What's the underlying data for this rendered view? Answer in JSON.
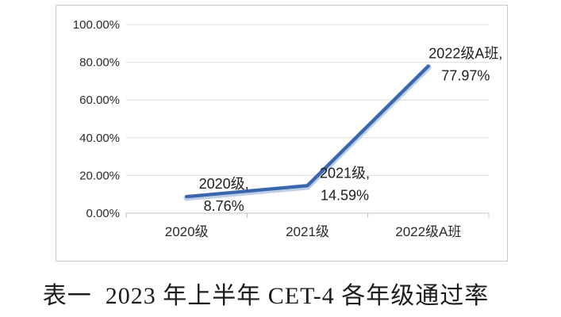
{
  "caption": "表一  2023 年上半年 CET-4 各年级通过率",
  "chart_data": {
    "type": "line",
    "title": "",
    "xlabel": "",
    "ylabel": "",
    "categories": [
      "2020级",
      "2021级",
      "2022级A班"
    ],
    "values": [
      8.76,
      14.59,
      77.97
    ],
    "data_labels": [
      [
        "2020级,",
        "8.76%"
      ],
      [
        "2021级,",
        "14.59%"
      ],
      [
        "2022级A班,",
        "77.97%"
      ]
    ],
    "y_tick_labels": [
      "0.00%",
      "20.00%",
      "40.00%",
      "60.00%",
      "80.00%",
      "100.00%"
    ],
    "ylim": [
      0,
      100
    ],
    "y_step": 20,
    "grid": true,
    "legend_position": "none",
    "colors": {
      "line": "#3c66ab",
      "line_halo": "#a7bedf",
      "gridline": "#dcdcdc",
      "axis": "#c0c0c0",
      "tick": "#bfbfbf",
      "text": "#2a2a2a",
      "box_border": "#c9c9c9"
    }
  }
}
